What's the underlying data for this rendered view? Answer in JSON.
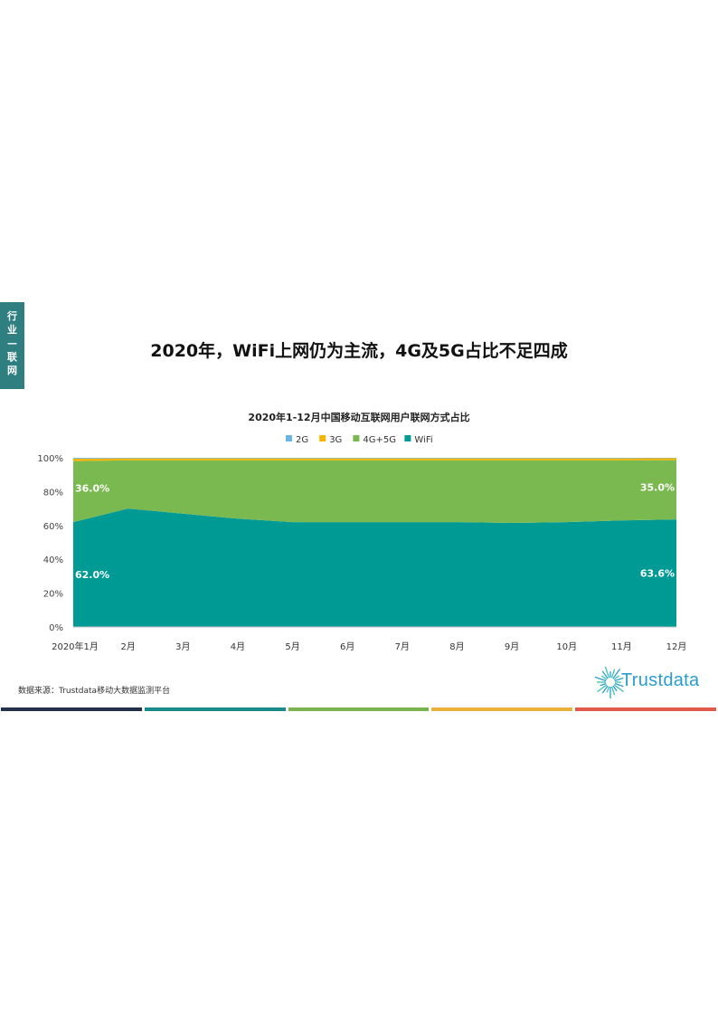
{
  "side_tab": {
    "chars": [
      "行",
      "业",
      "—",
      "联",
      "网"
    ]
  },
  "headline": "2020年，WiFi上网仍为主流，4G及5G占比不足四成",
  "source": "数据来源：Trustdata移动大数据监测平台",
  "logo": {
    "text": "Trustdata"
  },
  "colors": {
    "tab": "#2f7f80",
    "wifi": "#009a95",
    "g45": "#7ab94f",
    "g3": "#f4b400",
    "g2": "#69b6e6",
    "bars": [
      "#23304a",
      "#1b8a8a",
      "#79b24e",
      "#e8b23a",
      "#e05a4c"
    ]
  },
  "chart_data": {
    "type": "area",
    "title": "2020年1-12月中国移动互联网用户联网方式占比",
    "categories": [
      "2020年1月",
      "2月",
      "3月",
      "4月",
      "5月",
      "6月",
      "7月",
      "8月",
      "9月",
      "10月",
      "11月",
      "12月"
    ],
    "series": [
      {
        "name": "WiFi",
        "values": [
          62.0,
          70.0,
          67.0,
          64.0,
          62.0,
          62.0,
          62.0,
          62.0,
          61.5,
          62.0,
          63.0,
          63.6
        ]
      },
      {
        "name": "4G+5G",
        "values": [
          36.0,
          28.5,
          31.5,
          34.5,
          36.5,
          36.5,
          36.5,
          36.5,
          37.0,
          36.5,
          35.5,
          35.0
        ]
      },
      {
        "name": "3G",
        "values": [
          1.5,
          1.2,
          1.2,
          1.2,
          1.2,
          1.2,
          1.2,
          1.2,
          1.2,
          1.2,
          1.2,
          1.2
        ]
      },
      {
        "name": "2G",
        "values": [
          0.5,
          0.3,
          0.3,
          0.3,
          0.3,
          0.3,
          0.3,
          0.3,
          0.3,
          0.3,
          0.3,
          0.2
        ]
      }
    ],
    "legend_order": [
      "2G",
      "3G",
      "4G+5G",
      "WiFi"
    ],
    "y_ticks": [
      "0%",
      "20%",
      "40%",
      "60%",
      "80%",
      "100%"
    ],
    "ylim": [
      0,
      100
    ],
    "annotations": [
      {
        "series": "4G+5G",
        "index": 0,
        "text": "36.0%"
      },
      {
        "series": "WiFi",
        "index": 0,
        "text": "62.0%"
      },
      {
        "series": "4G+5G",
        "index": 11,
        "text": "35.0%"
      },
      {
        "series": "WiFi",
        "index": 11,
        "text": "63.6%"
      }
    ],
    "legend_position": "top"
  }
}
